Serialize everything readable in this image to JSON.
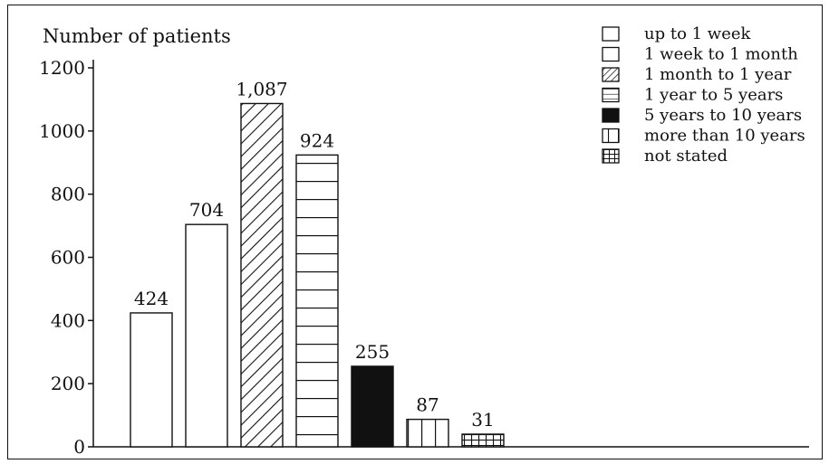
{
  "chart_data": {
    "type": "bar",
    "ylabel": "Number of patients",
    "ylim": [
      0,
      1200
    ],
    "yticks": [
      "0",
      "200",
      "400",
      "600",
      "800",
      "1000",
      "1200"
    ],
    "categories": [
      "up to 1 week",
      "1 week to 1 month",
      "1 month to 1 year",
      "1 year to 5 years",
      "5 years to 10 years",
      "more than 10 years",
      "not stated"
    ],
    "values": [
      424,
      704,
      1087,
      924,
      255,
      87,
      31
    ],
    "data_labels": [
      "424",
      "704",
      "1,087",
      "924",
      "255",
      "87",
      "31"
    ],
    "patterns": [
      "white",
      "white",
      "diagonal",
      "horizontal",
      "solid-black",
      "vertical",
      "grid"
    ],
    "legend_position": "top-right",
    "grid": false,
    "colors": {
      "stroke": "#111111",
      "fill": "#ffffff"
    }
  }
}
